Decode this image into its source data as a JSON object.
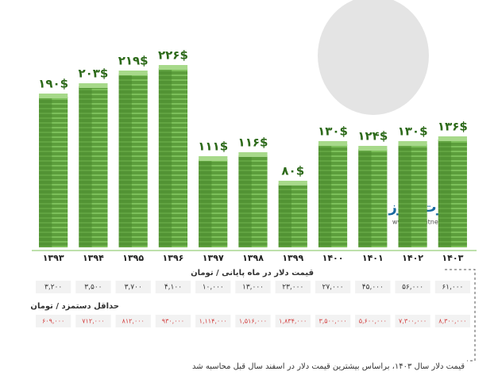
{
  "chart_data": {
    "type": "bar",
    "categories": [
      "۱۳۹۳",
      "۱۳۹۴",
      "۱۳۹۵",
      "۱۳۹۶",
      "۱۳۹۷",
      "۱۳۹۸",
      "۱۳۹۹",
      "۱۴۰۰",
      "۱۴۰۱",
      "۱۴۰۲",
      "۱۴۰۳"
    ],
    "values": [
      190,
      203,
      219,
      226,
      111,
      116,
      80,
      130,
      124,
      130,
      136
    ],
    "value_labels": [
      "۱۹۰$",
      "۲۰۳$",
      "۲۱۹$",
      "۲۲۶$",
      "۱۱۱$",
      "۱۱۶$",
      "۸۰$",
      "۱۳۰$",
      "۱۲۴$",
      "۱۳۰$",
      "۱۳۶$"
    ],
    "color": "#5c9e3c"
  },
  "dollar_row": {
    "label": "قیمت دلار در ماه پایانی / تومان",
    "cells": [
      "۳,۲۰۰",
      "۳,۵۰۰",
      "۳,۷۰۰",
      "۴,۱۰۰",
      "۱۰,۰۰۰",
      "۱۳,۰۰۰",
      "۲۳,۰۰۰",
      "۲۷,۰۰۰",
      "۴۵,۰۰۰",
      "۵۶,۰۰۰",
      "۶۱,۰۰۰"
    ]
  },
  "wage_row": {
    "label": "حداقل دستمزد / تومان",
    "cells": [
      "۶۰۹,۰۰۰",
      "۷۱۲,۰۰۰",
      "۸۱۲,۰۰۰",
      "۹۳۰,۰۰۰",
      "۱,۱۱۴,۰۰۰",
      "۱,۵۱۶,۰۰۰",
      "۱,۸۳۴,۰۰۰",
      "۳,۵۰۰,۰۰۰",
      "۵,۶۰۰,۰۰۰",
      "۷,۳۰۰,۰۰۰",
      "۸,۳۰۰,۰۰۰"
    ]
  },
  "logo": {
    "name": "تجارت نیوز",
    "url": "www.tejaratnews.com"
  },
  "footnote": "قیمت دلار سال ۱۴۰۳، براساس بیشترین قیمت دلار در اسفند سال قبل محاسبه شد"
}
